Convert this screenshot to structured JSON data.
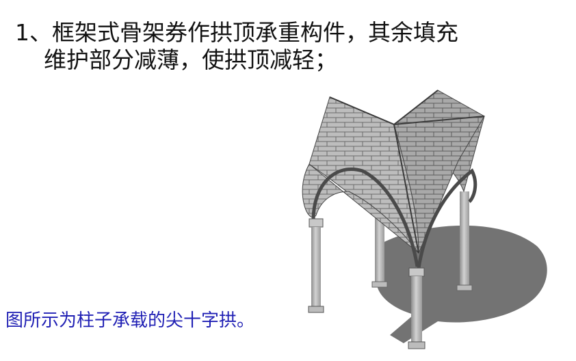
{
  "slide": {
    "point": {
      "line1": "1、框架式骨架券作拱顶承重构件，其余填充",
      "line2": "维护部分减薄，使拱顶减轻；"
    },
    "caption": {
      "text": "图所示为柱子承载的尖十字拱。",
      "color": "#1f1fb4"
    },
    "illustration": {
      "subject": "pointed-cross-vault-on-columns"
    }
  }
}
